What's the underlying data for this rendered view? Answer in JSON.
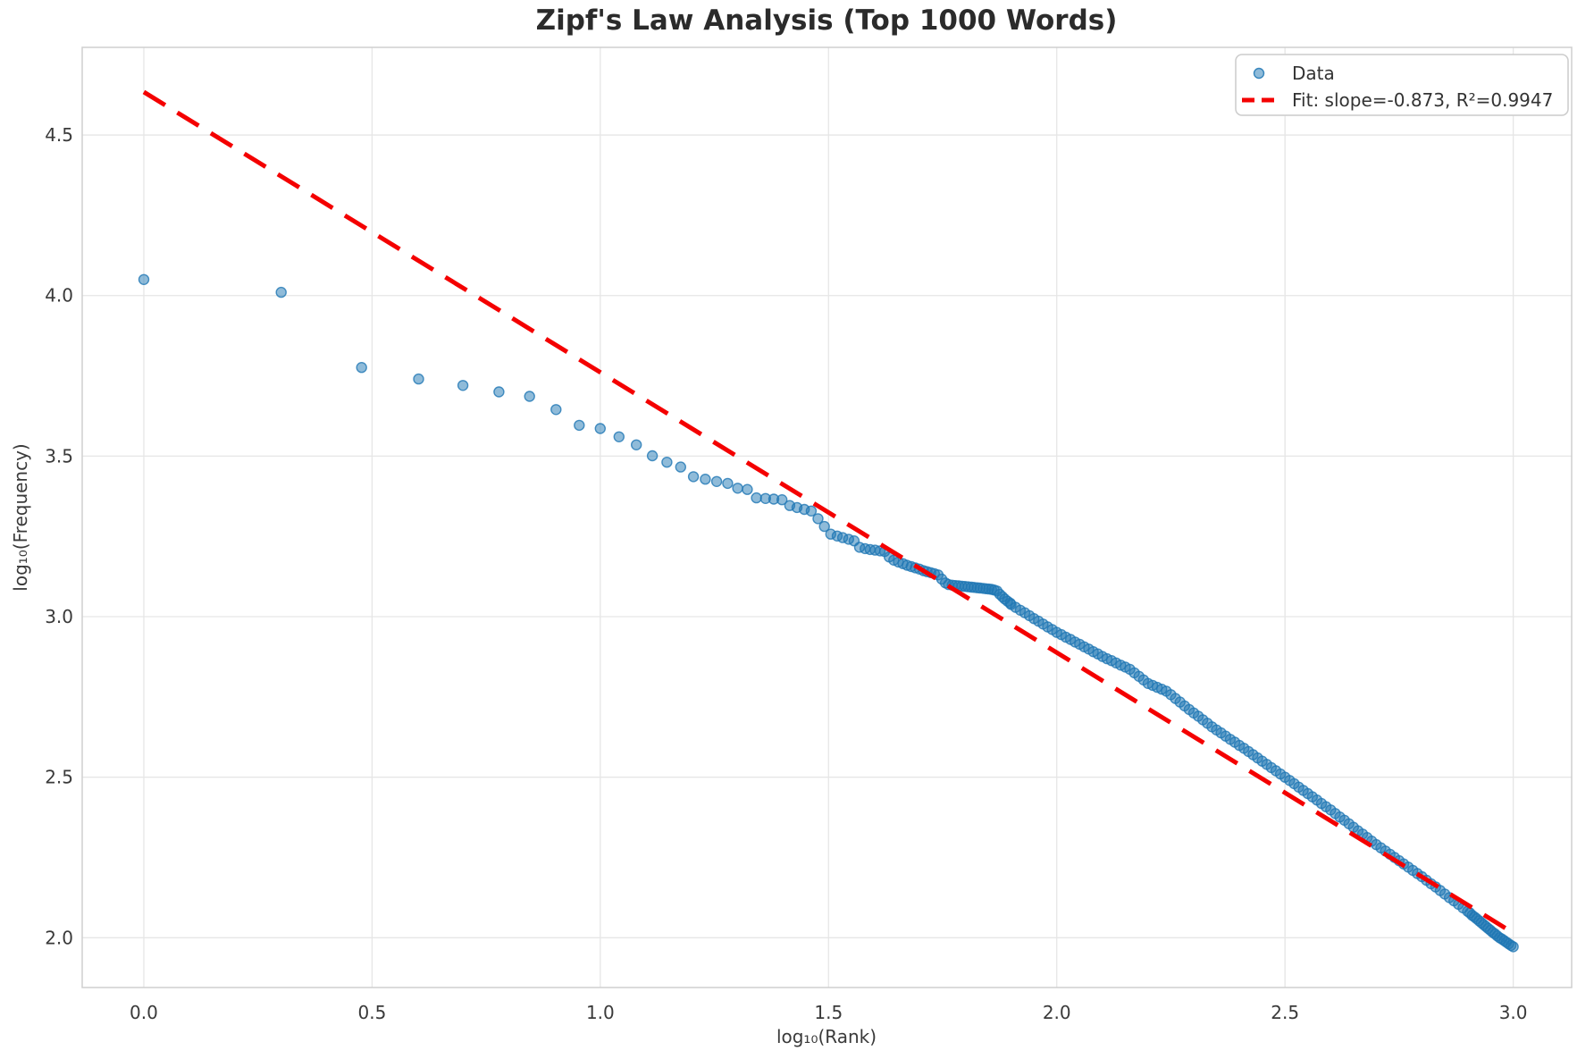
{
  "chart_data": {
    "type": "scatter",
    "title": "Zipf's Law Analysis (Top 1000 Words)",
    "xlabel": "log₁₀(Rank)",
    "ylabel": "log₁₀(Frequency)",
    "x_ticks": [
      0.0,
      0.5,
      1.0,
      1.5,
      2.0,
      2.5,
      3.0
    ],
    "y_ticks": [
      4.5,
      4.0,
      3.5,
      3.0,
      2.5,
      2.0
    ],
    "xlim": [
      -0.135,
      3.128
    ],
    "ylim": [
      1.845,
      4.773
    ],
    "grid": true,
    "colors": {
      "marker": "#1f77b4",
      "fit_line": "#f40000",
      "grid": "#e6e6e6",
      "spine": "#cfcfcf"
    },
    "legend": {
      "position": "upper right",
      "entries": [
        {
          "label": "Data",
          "type": "marker"
        },
        {
          "label": "Fit: slope=-0.873, R²=0.9947",
          "type": "dashed-line"
        }
      ]
    },
    "fit": {
      "slope": -0.873,
      "intercept": 4.634,
      "r_squared": 0.9947,
      "x_range": [
        0.0,
        3.0
      ]
    },
    "series": [
      {
        "name": "Data",
        "points": [
          [
            0.0,
            4.05
          ],
          [
            0.301,
            4.01
          ],
          [
            0.477,
            3.776
          ],
          [
            0.602,
            3.74
          ],
          [
            0.699,
            3.72
          ],
          [
            0.778,
            3.7
          ],
          [
            0.845,
            3.686
          ],
          [
            0.903,
            3.645
          ],
          [
            0.954,
            3.596
          ],
          [
            1.0,
            3.586
          ],
          [
            1.041,
            3.56
          ],
          [
            1.079,
            3.535
          ],
          [
            1.114,
            3.501
          ],
          [
            1.146,
            3.481
          ],
          [
            1.176,
            3.466
          ],
          [
            1.204,
            3.436
          ],
          [
            1.23,
            3.428
          ],
          [
            1.255,
            3.421
          ],
          [
            1.279,
            3.415
          ],
          [
            1.301,
            3.4
          ],
          [
            1.322,
            3.396
          ],
          [
            1.342,
            3.37
          ],
          [
            1.362,
            3.368
          ],
          [
            1.38,
            3.366
          ],
          [
            1.398,
            3.364
          ],
          [
            1.415,
            3.346
          ],
          [
            1.431,
            3.34
          ],
          [
            1.447,
            3.334
          ],
          [
            1.462,
            3.329
          ],
          [
            1.477,
            3.305
          ],
          [
            1.491,
            3.281
          ],
          [
            1.505,
            3.257
          ],
          [
            1.519,
            3.251
          ],
          [
            1.531,
            3.246
          ],
          [
            1.544,
            3.241
          ],
          [
            1.556,
            3.236
          ],
          [
            1.568,
            3.216
          ],
          [
            1.58,
            3.212
          ],
          [
            1.591,
            3.209
          ],
          [
            1.602,
            3.207
          ],
          [
            1.613,
            3.205
          ],
          [
            1.623,
            3.203
          ],
          [
            1.633,
            3.186
          ],
          [
            1.643,
            3.176
          ],
          [
            1.653,
            3.17
          ],
          [
            1.663,
            3.165
          ],
          [
            1.672,
            3.16
          ],
          [
            1.681,
            3.156
          ],
          [
            1.69,
            3.152
          ],
          [
            1.699,
            3.148
          ],
          [
            1.708,
            3.143
          ],
          [
            1.716,
            3.14
          ],
          [
            1.724,
            3.137
          ],
          [
            1.732,
            3.134
          ],
          [
            1.74,
            3.13
          ],
          [
            1.748,
            3.117
          ],
          [
            1.756,
            3.105
          ],
          [
            1.763,
            3.1
          ],
          [
            1.771,
            3.098
          ],
          [
            1.778,
            3.097
          ],
          [
            1.785,
            3.096
          ],
          [
            1.792,
            3.095
          ],
          [
            1.799,
            3.094
          ],
          [
            1.806,
            3.093
          ],
          [
            1.813,
            3.092
          ],
          [
            1.819,
            3.091
          ],
          [
            1.826,
            3.09
          ],
          [
            1.832,
            3.089
          ],
          [
            1.839,
            3.088
          ],
          [
            1.845,
            3.087
          ],
          [
            1.851,
            3.086
          ],
          [
            1.857,
            3.085
          ],
          [
            1.863,
            3.083
          ],
          [
            1.869,
            3.08
          ],
          [
            1.875,
            3.07
          ],
          [
            1.881,
            3.062
          ],
          [
            1.886,
            3.055
          ],
          [
            1.892,
            3.048
          ],
          [
            1.898,
            3.042
          ],
          [
            1.9,
            3.038
          ],
          [
            1.91,
            3.029
          ],
          [
            1.92,
            3.02
          ],
          [
            1.93,
            3.012
          ],
          [
            1.94,
            3.003
          ],
          [
            1.95,
            2.994
          ],
          [
            1.96,
            2.986
          ],
          [
            1.97,
            2.977
          ],
          [
            1.98,
            2.968
          ],
          [
            1.99,
            2.96
          ],
          [
            2.0,
            2.951
          ],
          [
            2.01,
            2.944
          ],
          [
            2.02,
            2.936
          ],
          [
            2.03,
            2.929
          ],
          [
            2.04,
            2.921
          ],
          [
            2.05,
            2.914
          ],
          [
            2.06,
            2.906
          ],
          [
            2.07,
            2.899
          ],
          [
            2.08,
            2.891
          ],
          [
            2.09,
            2.884
          ],
          [
            2.1,
            2.876
          ],
          [
            2.11,
            2.869
          ],
          [
            2.12,
            2.863
          ],
          [
            2.13,
            2.856
          ],
          [
            2.14,
            2.849
          ],
          [
            2.15,
            2.843
          ],
          [
            2.16,
            2.836
          ],
          [
            2.17,
            2.825
          ],
          [
            2.18,
            2.814
          ],
          [
            2.19,
            2.803
          ],
          [
            2.2,
            2.792
          ],
          [
            2.21,
            2.786
          ],
          [
            2.22,
            2.78
          ],
          [
            2.23,
            2.774
          ],
          [
            2.24,
            2.768
          ],
          [
            2.25,
            2.757
          ],
          [
            2.26,
            2.745
          ],
          [
            2.27,
            2.734
          ],
          [
            2.28,
            2.722
          ],
          [
            2.29,
            2.711
          ],
          [
            2.3,
            2.7
          ],
          [
            2.31,
            2.69
          ],
          [
            2.32,
            2.679
          ],
          [
            2.33,
            2.668
          ],
          [
            2.34,
            2.657
          ],
          [
            2.35,
            2.647
          ],
          [
            2.36,
            2.638
          ],
          [
            2.37,
            2.628
          ],
          [
            2.38,
            2.618
          ],
          [
            2.39,
            2.609
          ],
          [
            2.4,
            2.599
          ],
          [
            2.41,
            2.59
          ],
          [
            2.42,
            2.58
          ],
          [
            2.43,
            2.57
          ],
          [
            2.44,
            2.56
          ],
          [
            2.45,
            2.55
          ],
          [
            2.46,
            2.54
          ],
          [
            2.47,
            2.53
          ],
          [
            2.48,
            2.52
          ],
          [
            2.49,
            2.51
          ],
          [
            2.5,
            2.5
          ],
          [
            2.51,
            2.49
          ],
          [
            2.52,
            2.48
          ],
          [
            2.53,
            2.469
          ],
          [
            2.54,
            2.459
          ],
          [
            2.55,
            2.449
          ],
          [
            2.56,
            2.439
          ],
          [
            2.57,
            2.429
          ],
          [
            2.58,
            2.418
          ],
          [
            2.59,
            2.408
          ],
          [
            2.6,
            2.398
          ],
          [
            2.61,
            2.387
          ],
          [
            2.62,
            2.376
          ],
          [
            2.63,
            2.366
          ],
          [
            2.64,
            2.355
          ],
          [
            2.65,
            2.344
          ],
          [
            2.66,
            2.333
          ],
          [
            2.67,
            2.323
          ],
          [
            2.68,
            2.312
          ],
          [
            2.69,
            2.301
          ],
          [
            2.7,
            2.29
          ],
          [
            2.71,
            2.28
          ],
          [
            2.72,
            2.27
          ],
          [
            2.73,
            2.26
          ],
          [
            2.74,
            2.25
          ],
          [
            2.75,
            2.24
          ],
          [
            2.76,
            2.23
          ],
          [
            2.77,
            2.22
          ],
          [
            2.78,
            2.21
          ],
          [
            2.79,
            2.2
          ],
          [
            2.8,
            2.19
          ],
          [
            2.81,
            2.179
          ],
          [
            2.82,
            2.168
          ],
          [
            2.83,
            2.158
          ],
          [
            2.84,
            2.147
          ],
          [
            2.85,
            2.136
          ],
          [
            2.86,
            2.125
          ],
          [
            2.87,
            2.115
          ],
          [
            2.88,
            2.104
          ],
          [
            2.89,
            2.093
          ],
          [
            2.9,
            2.082
          ],
          [
            2.905,
            2.077
          ],
          [
            2.91,
            2.07
          ],
          [
            2.915,
            2.065
          ],
          [
            2.92,
            2.059
          ],
          [
            2.925,
            2.053
          ],
          [
            2.93,
            2.047
          ],
          [
            2.935,
            2.041
          ],
          [
            2.94,
            2.035
          ],
          [
            2.945,
            2.029
          ],
          [
            2.95,
            2.023
          ],
          [
            2.955,
            2.017
          ],
          [
            2.96,
            2.012
          ],
          [
            2.965,
            2.006
          ],
          [
            2.97,
            2.0
          ],
          [
            2.975,
            1.996
          ],
          [
            2.98,
            1.991
          ],
          [
            2.985,
            1.986
          ],
          [
            2.99,
            1.981
          ],
          [
            2.995,
            1.976
          ],
          [
            3.0,
            1.972
          ]
        ]
      }
    ]
  }
}
